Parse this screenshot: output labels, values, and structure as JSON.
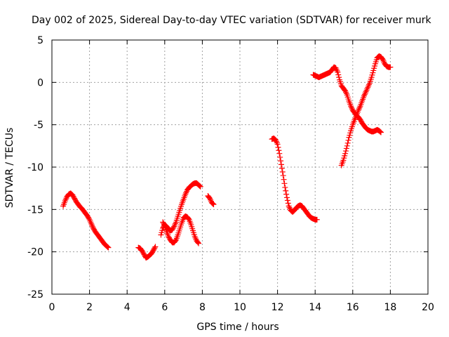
{
  "chart_data": {
    "type": "scatter",
    "title": "Day 002 of 2025, Sidereal Day-to-day VTEC variation (SDTVAR) for receiver murk",
    "xlabel": "GPS time / hours",
    "ylabel": "SDTVAR / TECUs",
    "xlim": [
      0,
      20
    ],
    "ylim": [
      -25,
      5
    ],
    "xticks": [
      "0",
      "2",
      "4",
      "6",
      "8",
      "10",
      "12",
      "14",
      "16",
      "18",
      "20"
    ],
    "yticks": [
      "5",
      "0",
      "-5",
      "-10",
      "-15",
      "-20",
      "-25"
    ],
    "grid": true,
    "marker": "plus",
    "color": "#ff0000",
    "series": [
      {
        "points": [
          [
            0.6,
            -14.6
          ],
          [
            0.7,
            -14.0
          ],
          [
            0.8,
            -13.5
          ],
          [
            0.9,
            -13.2
          ],
          [
            1.0,
            -13.1
          ],
          [
            1.1,
            -13.3
          ],
          [
            1.2,
            -13.7
          ],
          [
            1.3,
            -14.1
          ],
          [
            1.4,
            -14.4
          ],
          [
            1.5,
            -14.7
          ],
          [
            1.6,
            -14.9
          ],
          [
            1.7,
            -15.2
          ],
          [
            1.8,
            -15.5
          ],
          [
            1.9,
            -15.8
          ],
          [
            2.0,
            -16.2
          ],
          [
            2.1,
            -16.7
          ],
          [
            2.2,
            -17.2
          ],
          [
            2.3,
            -17.6
          ],
          [
            2.4,
            -17.9
          ],
          [
            2.5,
            -18.2
          ],
          [
            2.6,
            -18.5
          ],
          [
            2.7,
            -18.8
          ],
          [
            2.8,
            -19.1
          ],
          [
            2.9,
            -19.3
          ],
          [
            3.0,
            -19.5
          ]
        ]
      },
      {
        "points": [
          [
            4.6,
            -19.5
          ],
          [
            4.7,
            -19.6
          ],
          [
            4.8,
            -19.9
          ],
          [
            4.9,
            -20.3
          ],
          [
            5.0,
            -20.7
          ],
          [
            5.1,
            -20.6
          ],
          [
            5.2,
            -20.4
          ],
          [
            5.3,
            -20.2
          ],
          [
            5.4,
            -19.8
          ],
          [
            5.5,
            -19.4
          ]
        ]
      },
      {
        "points": [
          [
            5.8,
            -18.0
          ],
          [
            5.9,
            -17.2
          ],
          [
            6.0,
            -16.8
          ],
          [
            6.1,
            -17.0
          ],
          [
            6.2,
            -17.3
          ],
          [
            6.3,
            -17.5
          ],
          [
            6.4,
            -17.4
          ],
          [
            6.5,
            -17.0
          ],
          [
            6.6,
            -16.5
          ],
          [
            6.7,
            -15.8
          ],
          [
            6.8,
            -15.1
          ],
          [
            6.9,
            -14.4
          ],
          [
            7.0,
            -13.8
          ],
          [
            7.1,
            -13.2
          ],
          [
            7.2,
            -12.7
          ],
          [
            7.3,
            -12.4
          ],
          [
            7.4,
            -12.2
          ],
          [
            7.5,
            -12.0
          ],
          [
            7.6,
            -11.9
          ],
          [
            7.7,
            -11.9
          ],
          [
            7.8,
            -12.1
          ],
          [
            7.9,
            -12.3
          ]
        ]
      },
      {
        "points": [
          [
            5.9,
            -16.5
          ],
          [
            6.0,
            -16.9
          ],
          [
            6.1,
            -17.6
          ],
          [
            6.2,
            -18.2
          ],
          [
            6.3,
            -18.6
          ],
          [
            6.4,
            -18.9
          ],
          [
            6.5,
            -18.9
          ],
          [
            6.6,
            -18.6
          ],
          [
            6.7,
            -18.0
          ],
          [
            6.8,
            -17.3
          ],
          [
            6.9,
            -16.6
          ],
          [
            7.0,
            -16.0
          ],
          [
            7.1,
            -15.8
          ],
          [
            7.2,
            -15.9
          ],
          [
            7.3,
            -16.2
          ],
          [
            7.4,
            -16.8
          ],
          [
            7.5,
            -17.5
          ],
          [
            7.6,
            -18.2
          ],
          [
            7.7,
            -18.7
          ],
          [
            7.8,
            -19.0
          ]
        ]
      },
      {
        "points": [
          [
            8.3,
            -13.4
          ],
          [
            8.4,
            -13.7
          ],
          [
            8.5,
            -14.2
          ],
          [
            8.6,
            -14.4
          ]
        ]
      },
      {
        "points": [
          [
            11.7,
            -6.7
          ],
          [
            11.8,
            -6.6
          ],
          [
            11.9,
            -6.8
          ],
          [
            12.0,
            -7.3
          ],
          [
            12.1,
            -8.4
          ],
          [
            12.2,
            -9.7
          ],
          [
            12.3,
            -11.0
          ],
          [
            12.4,
            -12.4
          ],
          [
            12.5,
            -13.6
          ],
          [
            12.6,
            -14.6
          ],
          [
            12.7,
            -15.1
          ],
          [
            12.8,
            -15.3
          ],
          [
            12.9,
            -15.1
          ],
          [
            13.0,
            -14.8
          ],
          [
            13.1,
            -14.6
          ],
          [
            13.2,
            -14.5
          ],
          [
            13.3,
            -14.6
          ],
          [
            13.4,
            -14.9
          ],
          [
            13.5,
            -15.2
          ],
          [
            13.6,
            -15.5
          ],
          [
            13.7,
            -15.8
          ],
          [
            13.8,
            -16.0
          ],
          [
            13.9,
            -16.1
          ],
          [
            14.0,
            -16.2
          ],
          [
            14.1,
            -16.2
          ]
        ]
      },
      {
        "points": [
          [
            13.9,
            0.9
          ],
          [
            14.0,
            0.8
          ],
          [
            14.1,
            0.7
          ],
          [
            14.2,
            0.6
          ],
          [
            14.3,
            0.7
          ],
          [
            14.4,
            0.8
          ],
          [
            14.5,
            0.9
          ],
          [
            14.6,
            1.0
          ],
          [
            14.7,
            1.1
          ],
          [
            14.8,
            1.2
          ],
          [
            14.9,
            1.5
          ],
          [
            15.0,
            1.8
          ],
          [
            15.1,
            1.7
          ],
          [
            15.2,
            1.2
          ],
          [
            15.3,
            0.3
          ],
          [
            15.4,
            -0.4
          ],
          [
            15.5,
            -0.7
          ],
          [
            15.6,
            -1.0
          ],
          [
            15.7,
            -1.5
          ],
          [
            15.8,
            -2.2
          ],
          [
            15.9,
            -2.8
          ],
          [
            16.0,
            -3.3
          ],
          [
            16.1,
            -3.6
          ],
          [
            16.2,
            -3.9
          ],
          [
            16.3,
            -4.1
          ],
          [
            16.4,
            -4.4
          ],
          [
            16.5,
            -4.8
          ],
          [
            16.6,
            -5.1
          ],
          [
            16.7,
            -5.4
          ],
          [
            16.8,
            -5.6
          ],
          [
            16.9,
            -5.7
          ],
          [
            17.0,
            -5.8
          ],
          [
            17.1,
            -5.8
          ],
          [
            17.2,
            -5.7
          ],
          [
            17.3,
            -5.6
          ],
          [
            17.4,
            -5.7
          ],
          [
            17.5,
            -5.9
          ]
        ]
      },
      {
        "points": [
          [
            15.4,
            -9.8
          ],
          [
            15.5,
            -9.2
          ],
          [
            15.6,
            -8.4
          ],
          [
            15.7,
            -7.5
          ],
          [
            15.8,
            -6.5
          ],
          [
            15.9,
            -5.7
          ],
          [
            16.0,
            -5.0
          ],
          [
            16.1,
            -4.4
          ],
          [
            16.2,
            -3.9
          ],
          [
            16.3,
            -3.3
          ],
          [
            16.4,
            -2.8
          ],
          [
            16.5,
            -2.2
          ],
          [
            16.6,
            -1.6
          ],
          [
            16.7,
            -1.1
          ],
          [
            16.8,
            -0.6
          ],
          [
            16.9,
            -0.1
          ],
          [
            17.0,
            0.6
          ],
          [
            17.1,
            1.4
          ],
          [
            17.2,
            2.2
          ],
          [
            17.3,
            2.9
          ],
          [
            17.4,
            3.1
          ],
          [
            17.5,
            3.0
          ],
          [
            17.6,
            2.7
          ],
          [
            17.7,
            2.2
          ],
          [
            17.8,
            1.9
          ],
          [
            17.9,
            1.8
          ],
          [
            18.0,
            1.8
          ]
        ]
      }
    ]
  }
}
